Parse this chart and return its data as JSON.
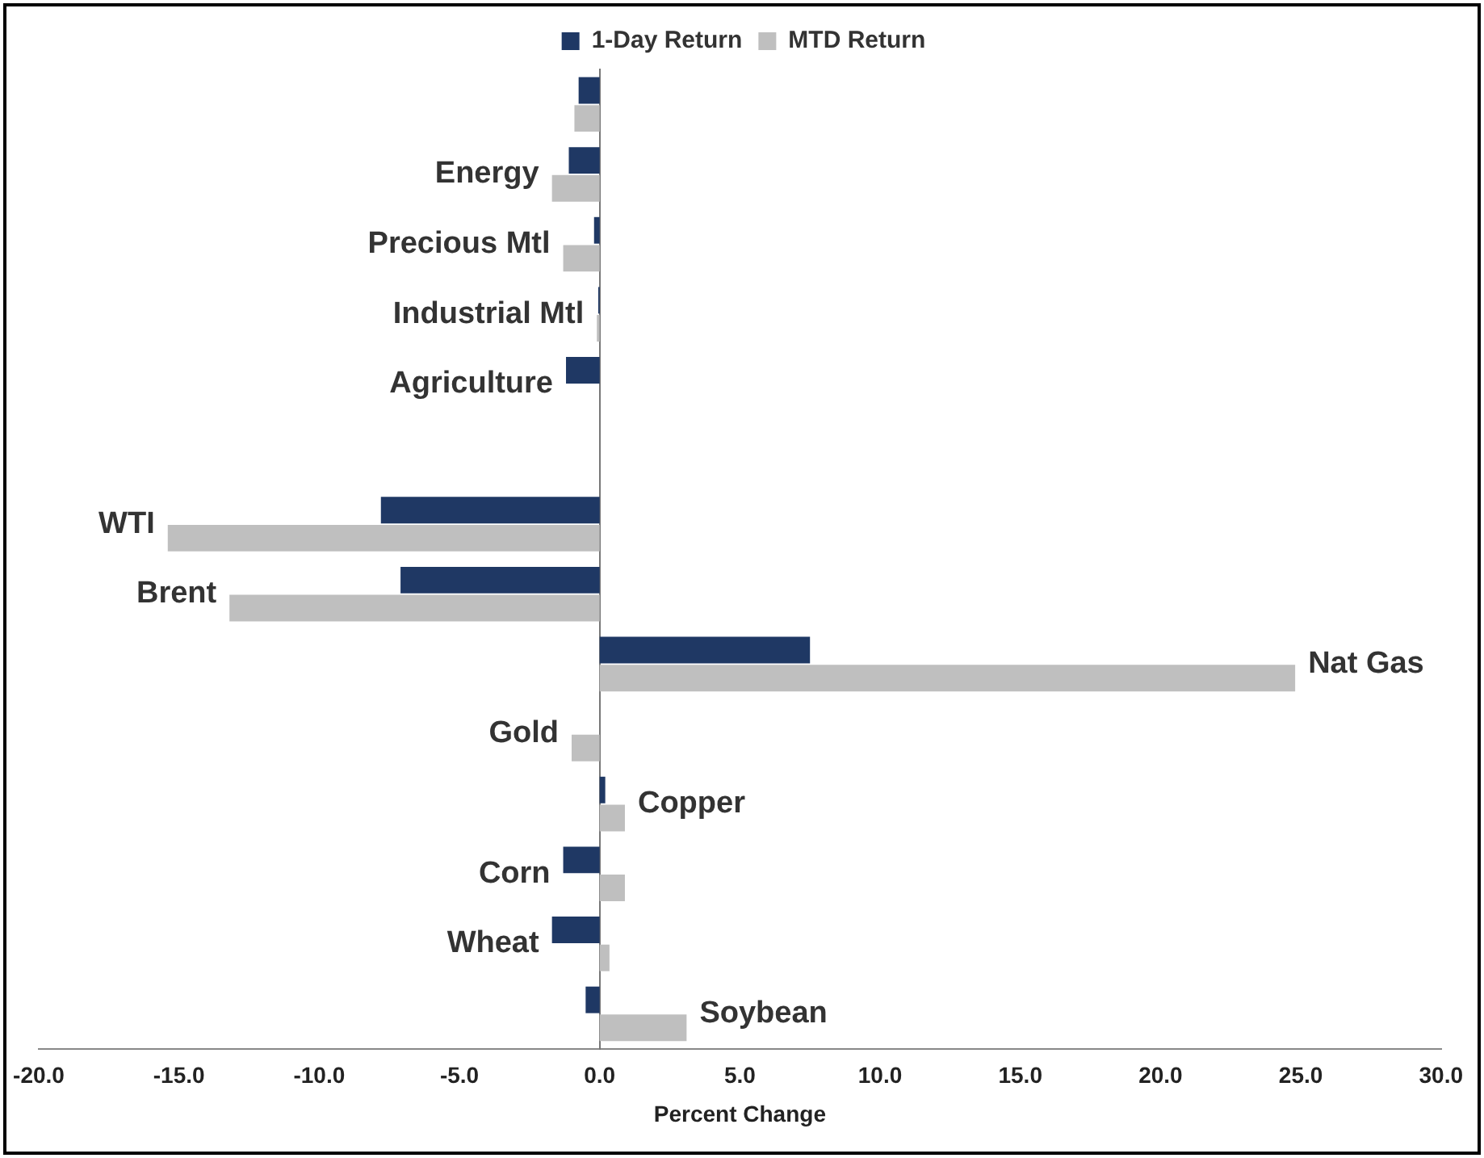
{
  "chart_data": {
    "type": "bar",
    "orientation": "horizontal",
    "xlabel": "Percent Change",
    "categories": [
      null,
      "Energy",
      "Precious Mtl",
      "Industrial Mtl",
      "Agriculture",
      null,
      "WTI",
      "Brent",
      "Nat Gas",
      "Gold",
      "Copper",
      "Corn",
      "Wheat",
      "Soybean"
    ],
    "series": [
      {
        "name": "1-Day Return",
        "color": "#1f3864",
        "values": [
          -0.75,
          -1.1,
          -0.2,
          -0.05,
          -1.2,
          null,
          -7.8,
          -7.1,
          7.5,
          0,
          0.2,
          -1.3,
          -1.7,
          -0.5
        ]
      },
      {
        "name": "MTD Return",
        "color": "#bfbfbf",
        "values": [
          -0.9,
          -1.7,
          -1.3,
          -0.1,
          0,
          null,
          -15.4,
          -13.2,
          24.8,
          -1.0,
          0.9,
          0.9,
          0.35,
          3.1
        ]
      }
    ],
    "xlim": [
      -20,
      30
    ],
    "xticks": [
      {
        "value": -20,
        "label": "-20.0"
      },
      {
        "value": -15,
        "label": "-15.0"
      },
      {
        "value": -10,
        "label": "-10.0"
      },
      {
        "value": -5,
        "label": "-5.0"
      },
      {
        "value": 0,
        "label": "0.0"
      },
      {
        "value": 5,
        "label": "5.0"
      },
      {
        "value": 10,
        "label": "10.0"
      },
      {
        "value": 15,
        "label": "15.0"
      },
      {
        "value": 20,
        "label": "20.0"
      },
      {
        "value": 25,
        "label": "25.0"
      },
      {
        "value": 30,
        "label": "30.0"
      }
    ],
    "grid": false,
    "legend": "top"
  }
}
